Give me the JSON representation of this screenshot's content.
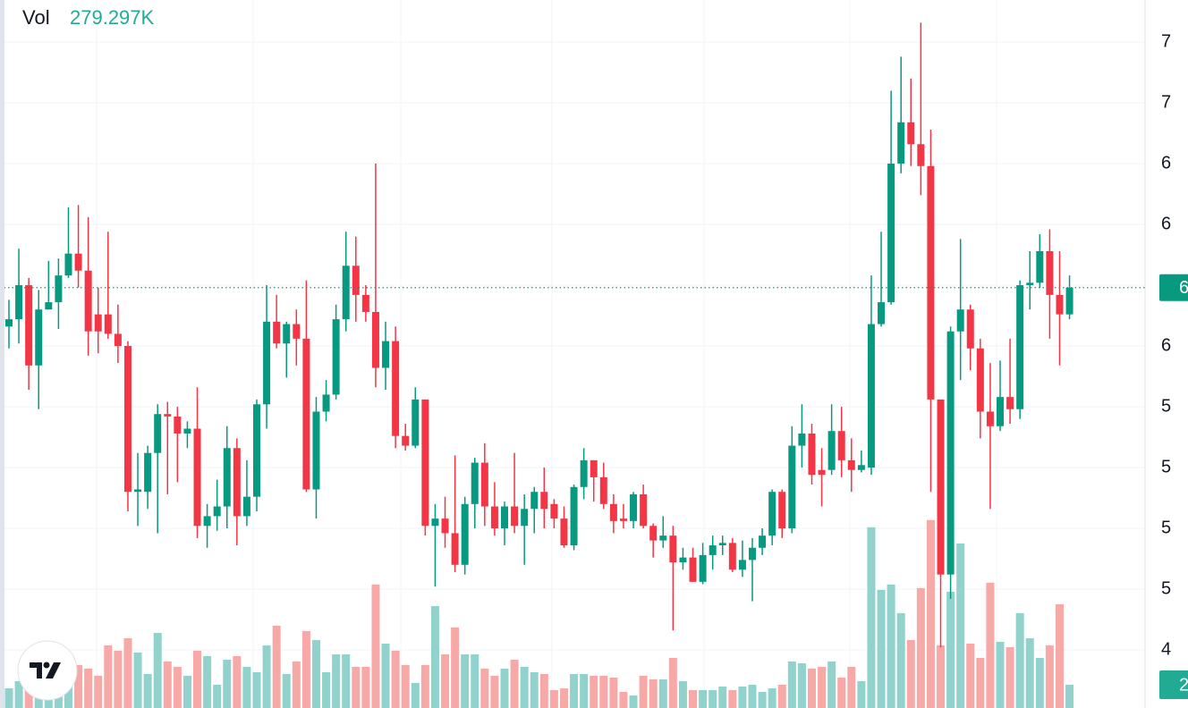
{
  "chart_data": {
    "type": "candlestick",
    "volume_label": "Vol",
    "volume_value_label": "279.297K",
    "ylim": [
      4.511,
      7.423
    ],
    "yticks": [
      {
        "value": 7.25,
        "label": "7"
      },
      {
        "value": 7.0,
        "label": "7"
      },
      {
        "value": 6.75,
        "label": "6"
      },
      {
        "value": 6.5,
        "label": "6"
      },
      {
        "value": 6.25,
        "label": "6"
      },
      {
        "value": 6.0,
        "label": "6"
      },
      {
        "value": 5.75,
        "label": "5"
      },
      {
        "value": 5.5,
        "label": "5"
      },
      {
        "value": 5.25,
        "label": "5"
      },
      {
        "value": 5.0,
        "label": "5"
      },
      {
        "value": 4.75,
        "label": "4"
      }
    ],
    "vlim": [
      0,
      8500000
    ],
    "grid": true,
    "up_color": "#089981",
    "down_color": "#f23645",
    "volume_up_color": "#92d2cc",
    "volume_down_color": "#f7a9a7",
    "last_price_tag": {
      "value": 6.24,
      "label": "6"
    },
    "last_volume_tag": {
      "value": 279297,
      "label": "2"
    },
    "open": [
      6.08,
      6.11,
      6.25,
      5.92,
      6.15,
      6.18,
      6.29,
      6.38,
      6.31,
      6.13,
      6.13,
      6.05,
      6.0,
      5.4,
      5.4,
      5.56,
      5.72,
      5.71,
      5.64,
      5.66,
      5.26,
      5.3,
      5.34,
      5.58,
      5.3,
      5.38,
      5.76,
      6.1,
      6.01,
      6.09,
      6.03,
      5.41,
      5.73,
      5.8,
      6.11,
      6.33,
      6.21,
      6.14,
      5.91,
      6.02,
      5.63,
      5.59,
      5.78,
      5.26,
      5.29,
      5.23,
      5.1,
      5.35,
      5.52,
      5.34,
      5.25,
      5.34,
      5.26,
      5.33,
      5.4,
      5.35,
      5.29,
      5.18,
      5.42,
      5.53,
      5.46,
      5.35,
      5.29,
      5.28,
      5.39,
      5.26,
      5.2,
      5.22,
      5.11,
      5.13,
      5.03,
      5.14,
      5.18,
      5.19,
      5.08,
      5.12,
      5.17,
      5.22,
      5.4,
      5.25,
      5.59,
      5.64,
      5.49,
      5.49,
      5.65,
      5.53,
      5.49,
      5.5,
      6.09,
      6.18,
      6.75,
      6.92,
      6.83,
      6.74,
      5.78,
      5.06,
      6.06,
      6.15,
      5.99,
      5.73,
      5.67,
      5.79,
      5.74,
      6.25,
      6.26,
      6.39,
      6.21,
      6.13
    ],
    "high": [
      6.19,
      6.4,
      6.28,
      6.23,
      6.35,
      6.36,
      6.57,
      6.58,
      6.53,
      6.24,
      6.47,
      6.17,
      6.02,
      5.56,
      5.59,
      5.76,
      5.77,
      5.75,
      5.69,
      5.83,
      5.35,
      5.45,
      5.67,
      5.62,
      5.53,
      5.78,
      6.25,
      6.21,
      6.1,
      6.15,
      6.27,
      5.79,
      5.86,
      6.17,
      6.47,
      6.45,
      6.25,
      6.75,
      6.1,
      6.08,
      5.68,
      5.83,
      5.78,
      5.35,
      5.38,
      5.55,
      5.38,
      5.54,
      5.6,
      5.44,
      5.36,
      5.56,
      5.39,
      5.42,
      5.5,
      5.37,
      5.34,
      5.43,
      5.58,
      5.53,
      5.52,
      5.39,
      5.35,
      5.4,
      5.43,
      5.27,
      5.3,
      5.26,
      5.17,
      5.17,
      5.19,
      5.22,
      5.22,
      5.21,
      5.2,
      5.21,
      5.25,
      5.41,
      5.41,
      5.67,
      5.76,
      5.68,
      5.58,
      5.76,
      5.75,
      5.62,
      5.57,
      6.29,
      6.47,
      7.05,
      7.19,
      7.1,
      7.33,
      6.89,
      5.78,
      6.08,
      6.44,
      6.17,
      6.03,
      5.93,
      5.94,
      6.03,
      6.27,
      6.39,
      6.46,
      6.48,
      6.39,
      6.29
    ],
    "low": [
      5.99,
      6.01,
      5.82,
      5.74,
      6.15,
      6.07,
      6.28,
      6.24,
      5.96,
      5.97,
      6.03,
      5.93,
      5.32,
      5.26,
      5.33,
      5.23,
      5.39,
      5.44,
      5.58,
      5.21,
      5.17,
      5.24,
      5.25,
      5.18,
      5.26,
      5.32,
      5.66,
      5.99,
      5.87,
      5.92,
      5.4,
      5.29,
      5.69,
      5.78,
      6.06,
      6.1,
      6.1,
      5.83,
      5.82,
      5.58,
      5.57,
      5.58,
      5.22,
      5.01,
      5.17,
      5.07,
      5.06,
      5.25,
      5.26,
      5.22,
      5.18,
      5.23,
      5.1,
      5.23,
      5.25,
      5.25,
      5.17,
      5.16,
      5.37,
      5.36,
      5.33,
      5.23,
      5.25,
      5.25,
      5.25,
      5.13,
      5.17,
      4.83,
      5.08,
      5.03,
      5.02,
      5.08,
      5.14,
      5.07,
      5.05,
      4.95,
      5.14,
      5.18,
      5.21,
      5.23,
      5.5,
      5.43,
      5.34,
      5.47,
      5.46,
      5.4,
      5.48,
      5.47,
      6.08,
      6.17,
      6.71,
      6.74,
      6.62,
      5.4,
      4.76,
      4.96,
      5.86,
      5.9,
      5.62,
      5.33,
      5.65,
      5.68,
      5.7,
      6.15,
      6.24,
      6.03,
      5.92,
      6.11
    ],
    "close": [
      6.11,
      6.25,
      5.92,
      6.15,
      6.18,
      6.29,
      6.38,
      6.31,
      6.06,
      6.06,
      6.05,
      6.0,
      5.4,
      5.41,
      5.56,
      5.72,
      5.71,
      5.64,
      5.66,
      5.26,
      5.3,
      5.34,
      5.58,
      5.3,
      5.38,
      5.76,
      6.1,
      6.01,
      6.09,
      6.03,
      5.41,
      5.73,
      5.8,
      6.11,
      6.33,
      6.21,
      6.14,
      5.91,
      6.02,
      5.63,
      5.59,
      5.78,
      5.26,
      5.29,
      5.23,
      5.1,
      5.35,
      5.52,
      5.34,
      5.25,
      5.34,
      5.26,
      5.33,
      5.4,
      5.33,
      5.29,
      5.18,
      5.42,
      5.53,
      5.46,
      5.35,
      5.28,
      5.28,
      5.39,
      5.26,
      5.2,
      5.22,
      5.11,
      5.13,
      5.03,
      5.14,
      5.18,
      5.19,
      5.08,
      5.12,
      5.17,
      5.22,
      5.4,
      5.25,
      5.59,
      5.64,
      5.47,
      5.47,
      5.65,
      5.53,
      5.49,
      5.51,
      6.09,
      6.18,
      6.75,
      6.92,
      6.83,
      6.74,
      5.78,
      5.06,
      6.06,
      6.15,
      5.99,
      5.73,
      5.67,
      5.79,
      5.74,
      6.25,
      6.26,
      6.39,
      6.21,
      6.13,
      6.24
    ],
    "volume": [
      236000,
      322000,
      301000,
      193000,
      236000,
      215000,
      408000,
      516000,
      473000,
      387000,
      752000,
      687000,
      838000,
      666000,
      408000,
      902000,
      559000,
      494000,
      387000,
      687000,
      623000,
      279000,
      580000,
      623000,
      494000,
      430000,
      752000,
      988000,
      408000,
      559000,
      924000,
      816000,
      430000,
      644000,
      644000,
      494000,
      494000,
      1482000,
      773000,
      687000,
      516000,
      301000,
      516000,
      1224000,
      644000,
      967000,
      644000,
      644000,
      473000,
      387000,
      473000,
      580000,
      494000,
      430000,
      408000,
      215000,
      236000,
      408000,
      408000,
      387000,
      387000,
      365000,
      193000,
      150000,
      387000,
      344000,
      344000,
      601000,
      322000,
      215000,
      215000,
      215000,
      258000,
      215000,
      258000,
      279000,
      193000,
      236000,
      279000,
      559000,
      537000,
      473000,
      494000,
      559000,
      365000,
      494000,
      322000,
      2170000,
      1418000,
      1482000,
      1139000,
      816000,
      1439000,
      2256000,
      752000,
      1396000,
      1976000,
      773000,
      601000,
      1504000,
      795000,
      730000,
      1139000,
      838000,
      601000,
      752000,
      1246000,
      279297
    ]
  }
}
